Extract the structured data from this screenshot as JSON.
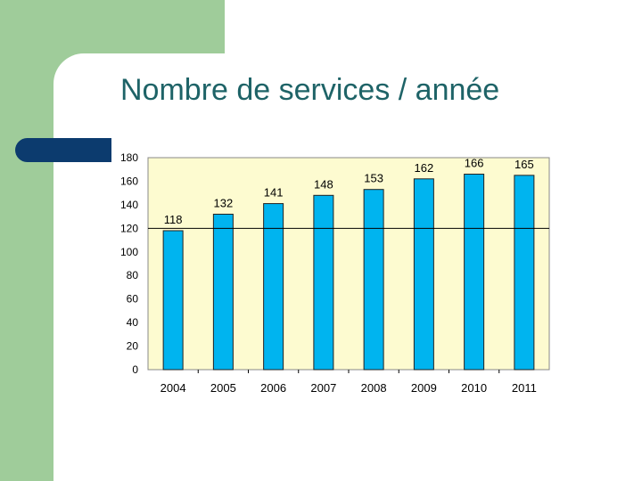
{
  "slide": {
    "title": "Nombre de services / année"
  },
  "colors": {
    "background_green": "#9fcc9a",
    "accent_navy": "#0c3b6e",
    "title_teal": "#1e6367",
    "plot_area": "#fdfbd0",
    "bar_fill": "#00b4ef"
  },
  "chart_data": {
    "type": "bar",
    "title": "",
    "xlabel": "",
    "ylabel": "",
    "categories": [
      "2004",
      "2005",
      "2006",
      "2007",
      "2008",
      "2009",
      "2010",
      "2011"
    ],
    "values": [
      118,
      132,
      141,
      148,
      153,
      162,
      166,
      165
    ],
    "data_labels": [
      "118",
      "132",
      "141",
      "148",
      "153",
      "162",
      "166",
      "165"
    ],
    "ylim": [
      0,
      180
    ],
    "y_ticks": [
      0,
      20,
      40,
      60,
      80,
      100,
      120,
      140,
      160,
      180
    ],
    "reference_line": 120,
    "legend": "none",
    "grid": false
  }
}
